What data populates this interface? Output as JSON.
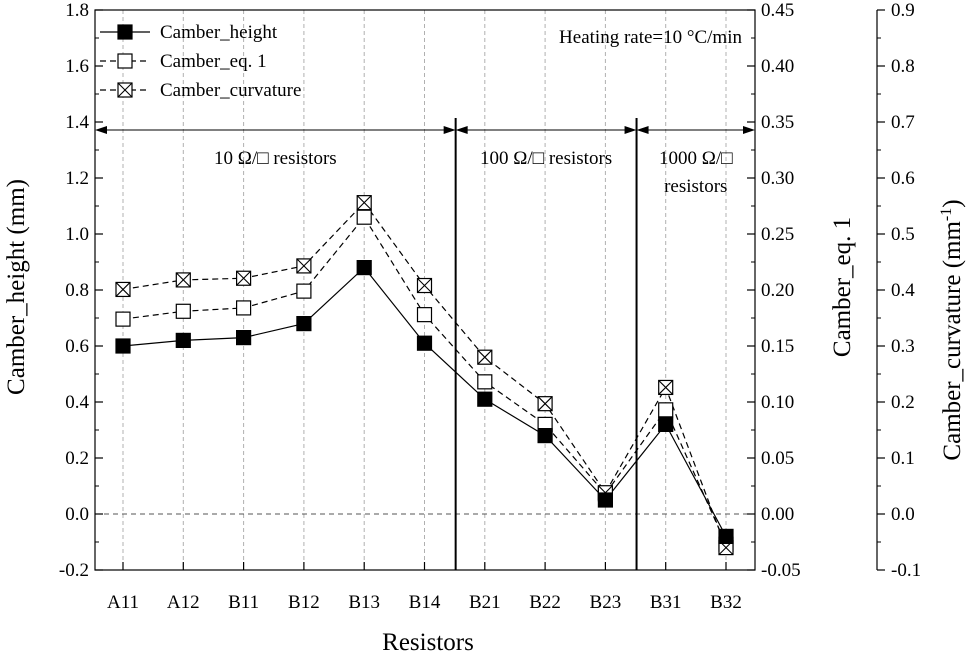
{
  "chart_data": {
    "type": "line",
    "categories": [
      "A11",
      "A12",
      "B11",
      "B12",
      "B13",
      "B14",
      "B21",
      "B22",
      "B23",
      "B31",
      "B32"
    ],
    "xlabel": "Resistors",
    "ylabel": "Camber_height (mm)",
    "y2label": "Camber_eq. 1",
    "y3label_base": "Camber_curvature (mm",
    "y3label_exp": "-1",
    "y3label_close": ")",
    "ylim": [
      -0.2,
      1.8
    ],
    "y2lim": [
      -0.05,
      0.45
    ],
    "y3lim": [
      -0.1,
      0.9
    ],
    "yticks": [
      "-0.2",
      "0.0",
      "0.2",
      "0.4",
      "0.6",
      "0.8",
      "1.0",
      "1.2",
      "1.4",
      "1.6",
      "1.8"
    ],
    "y2ticks": [
      "-0.05",
      "0.00",
      "0.05",
      "0.10",
      "0.15",
      "0.20",
      "0.25",
      "0.30",
      "0.35",
      "0.40",
      "0.45"
    ],
    "y3ticks": [
      "-0.1",
      "0.0",
      "0.1",
      "0.2",
      "0.3",
      "0.4",
      "0.5",
      "0.6",
      "0.7",
      "0.8",
      "0.9"
    ],
    "grid": "vertical-dashed",
    "legend_position": "top-left",
    "series": [
      {
        "name": "Camber_height",
        "axis": "y1",
        "marker": "filled-square",
        "line": "solid",
        "values": [
          0.6,
          0.62,
          0.63,
          0.68,
          0.88,
          0.61,
          0.41,
          0.28,
          0.05,
          0.32,
          -0.08
        ]
      },
      {
        "name": "Camber_eq. 1",
        "axis": "y2",
        "marker": "open-square",
        "line": "dashed",
        "values": [
          0.174,
          0.181,
          0.184,
          0.199,
          0.265,
          0.178,
          0.118,
          0.08,
          0.018,
          0.093,
          -0.027
        ]
      },
      {
        "name": "Camber_curvature",
        "axis": "y3",
        "marker": "crossed-square",
        "line": "dashed",
        "values": [
          0.401,
          0.418,
          0.421,
          0.443,
          0.556,
          0.408,
          0.28,
          0.197,
          0.038,
          0.226,
          -0.06
        ]
      }
    ],
    "annotations": {
      "heating_rate": "Heating rate=10 °C/min",
      "groups": [
        {
          "label_lines": [
            "10 Ω/□ resistors"
          ],
          "from": "left-edge",
          "to": "B14|B21"
        },
        {
          "label_lines": [
            "100 Ω/□ resistors"
          ],
          "from": "B14|B21",
          "to": "B23|B31"
        },
        {
          "label_lines": [
            "1000 Ω/□",
            "resistors"
          ],
          "from": "B23|B31",
          "to": "right-edge"
        }
      ]
    },
    "colors": {
      "line": "#000000",
      "grid": "#b0b0b0",
      "background": "#ffffff"
    }
  }
}
